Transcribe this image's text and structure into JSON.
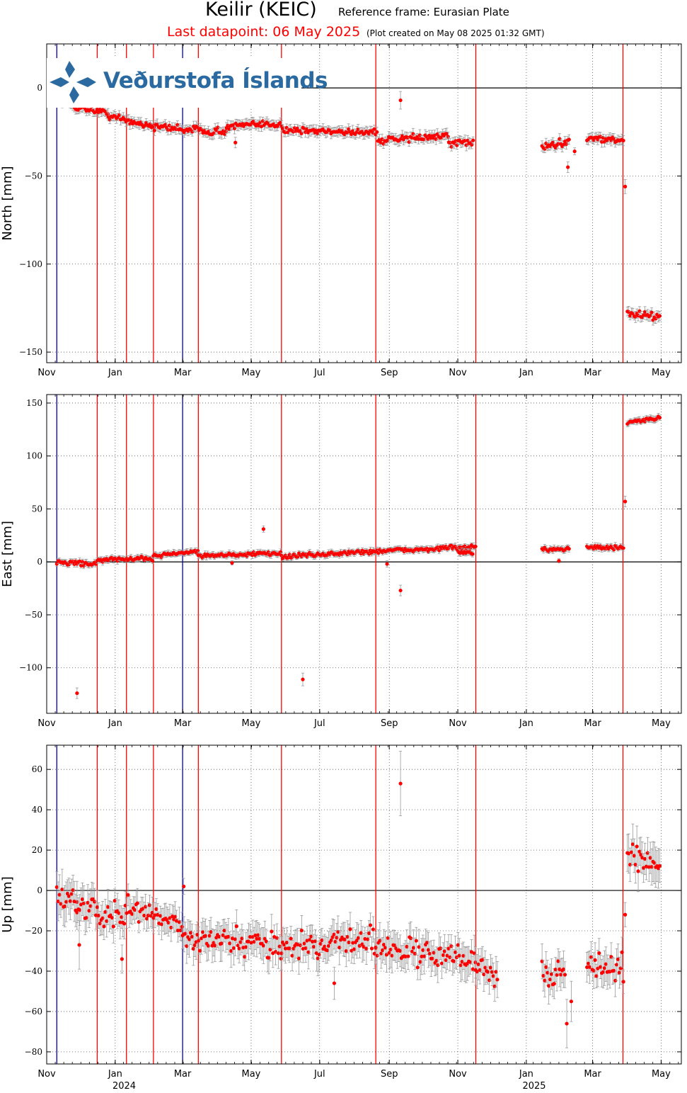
{
  "header": {
    "title": "Keilir (KEIC)",
    "reference": "Reference frame: Eurasian Plate",
    "last_datapoint": "Last datapoint: 06 May 2025",
    "created": "(Plot created on May 08 2025 01:32 GMT)"
  },
  "logo": {
    "text": "Veðurstofa Íslands"
  },
  "colors": {
    "data": "#ff0000",
    "errorbar": "#999999",
    "event_red": "#ff0000",
    "event_blue": "#0000aa",
    "grid": "#555555"
  },
  "chart_data": [
    {
      "type": "scatter",
      "ylabel": "North [mm]",
      "ylim": [
        -156,
        25
      ],
      "yticks": [
        0,
        -50,
        -100,
        -150
      ],
      "xlim": [
        0,
        565
      ],
      "xticks": [
        {
          "x": 0,
          "label": "Nov"
        },
        {
          "x": 61,
          "label": "Jan"
        },
        {
          "x": 121,
          "label": "Mar"
        },
        {
          "x": 182,
          "label": "May"
        },
        {
          "x": 243,
          "label": "Jul"
        },
        {
          "x": 305,
          "label": "Sep"
        },
        {
          "x": 366,
          "label": "Nov"
        },
        {
          "x": 427,
          "label": "Jan"
        },
        {
          "x": 486,
          "label": "Mar"
        },
        {
          "x": 547,
          "label": "May"
        }
      ],
      "grid": true,
      "zero_line": true,
      "segments": [
        {
          "x0": 9,
          "x1": 27,
          "y0": -6,
          "y1": -11,
          "noise": 1.5,
          "err": 2.5
        },
        {
          "x0": 27,
          "x1": 55,
          "y0": -11,
          "y1": -14,
          "noise": 1.5,
          "err": 2.5
        },
        {
          "x0": 55,
          "x1": 96,
          "y0": -16,
          "y1": -22,
          "noise": 1.5,
          "err": 2.5
        },
        {
          "x0": 96,
          "x1": 160,
          "y0": -22,
          "y1": -25,
          "noise": 1.5,
          "err": 2.5
        },
        {
          "x0": 160,
          "x1": 210,
          "y0": -22,
          "y1": -20,
          "noise": 1.5,
          "err": 2.5
        },
        {
          "x0": 210,
          "x1": 295,
          "y0": -24,
          "y1": -25,
          "noise": 1.5,
          "err": 2.5
        },
        {
          "x0": 295,
          "x1": 358,
          "y0": -30,
          "y1": -27,
          "noise": 1.5,
          "err": 2.5
        },
        {
          "x0": 358,
          "x1": 380,
          "y0": -32,
          "y1": -30,
          "noise": 1.5,
          "err": 2.5
        },
        {
          "x0": 441,
          "x1": 465,
          "y0": -34,
          "y1": -30,
          "noise": 1.5,
          "err": 2.5
        },
        {
          "x0": 481,
          "x1": 514,
          "y0": -28,
          "y1": -30,
          "noise": 1.5,
          "err": 2.5
        },
        {
          "x0": 517,
          "x1": 546,
          "y0": -128,
          "y1": -130,
          "noise": 1.5,
          "err": 2.5
        }
      ],
      "points": [
        {
          "x": 315,
          "y": -7,
          "err": 5
        },
        {
          "x": 515,
          "y": -56,
          "err": 4
        },
        {
          "x": 464,
          "y": -45,
          "err": 3
        },
        {
          "x": 470,
          "y": -36,
          "err": 2
        },
        {
          "x": 168,
          "y": -31,
          "err": 3
        }
      ],
      "events": [
        {
          "x": 9,
          "color": "blue"
        },
        {
          "x": 45,
          "color": "red"
        },
        {
          "x": 71,
          "color": "red"
        },
        {
          "x": 95,
          "color": "red"
        },
        {
          "x": 121,
          "color": "blue"
        },
        {
          "x": 135,
          "color": "red"
        },
        {
          "x": 209,
          "color": "red"
        },
        {
          "x": 293,
          "color": "red"
        },
        {
          "x": 382,
          "color": "red"
        },
        {
          "x": 513,
          "color": "red"
        }
      ]
    },
    {
      "type": "scatter",
      "ylabel": "East [mm]",
      "ylim": [
        -143,
        158
      ],
      "yticks": [
        150,
        100,
        50,
        0,
        -50,
        -100
      ],
      "xlim": [
        0,
        565
      ],
      "xticks": [
        {
          "x": 0,
          "label": "Nov"
        },
        {
          "x": 61,
          "label": "Jan"
        },
        {
          "x": 121,
          "label": "Mar"
        },
        {
          "x": 182,
          "label": "May"
        },
        {
          "x": 243,
          "label": "Jul"
        },
        {
          "x": 305,
          "label": "Sep"
        },
        {
          "x": 366,
          "label": "Nov"
        },
        {
          "x": 427,
          "label": "Jan"
        },
        {
          "x": 486,
          "label": "Mar"
        },
        {
          "x": 547,
          "label": "May"
        }
      ],
      "grid": true,
      "zero_line": true,
      "segments": [
        {
          "x0": 9,
          "x1": 45,
          "y0": 0,
          "y1": -2,
          "noise": 1.5,
          "err": 2.5
        },
        {
          "x0": 45,
          "x1": 95,
          "y0": 2,
          "y1": 3,
          "noise": 1.5,
          "err": 2.5
        },
        {
          "x0": 95,
          "x1": 135,
          "y0": 6,
          "y1": 10,
          "noise": 1.5,
          "err": 2.5
        },
        {
          "x0": 135,
          "x1": 209,
          "y0": 6,
          "y1": 8,
          "noise": 1.5,
          "err": 2.5
        },
        {
          "x0": 209,
          "x1": 293,
          "y0": 5,
          "y1": 10,
          "noise": 1.5,
          "err": 2.5
        },
        {
          "x0": 293,
          "x1": 382,
          "y0": 10,
          "y1": 14,
          "noise": 1.5,
          "err": 2.5
        },
        {
          "x0": 366,
          "x1": 380,
          "y0": 10,
          "y1": 7,
          "noise": 1.5,
          "err": 2.5
        },
        {
          "x0": 441,
          "x1": 465,
          "y0": 12,
          "y1": 13,
          "noise": 1.5,
          "err": 2.5
        },
        {
          "x0": 481,
          "x1": 514,
          "y0": 14,
          "y1": 13,
          "noise": 1.5,
          "err": 2.5
        },
        {
          "x0": 517,
          "x1": 546,
          "y0": 131,
          "y1": 136,
          "noise": 1.5,
          "err": 2.5
        }
      ],
      "points": [
        {
          "x": 27,
          "y": -124,
          "err": 5
        },
        {
          "x": 193,
          "y": 31,
          "err": 3
        },
        {
          "x": 228,
          "y": -111,
          "err": 6
        },
        {
          "x": 315,
          "y": -27,
          "err": 5
        },
        {
          "x": 303,
          "y": -2,
          "err": 3
        },
        {
          "x": 515,
          "y": 57,
          "err": 5
        },
        {
          "x": 456,
          "y": 1,
          "err": 2
        },
        {
          "x": 165,
          "y": -1,
          "err": 2
        }
      ],
      "events": [
        {
          "x": 9,
          "color": "blue"
        },
        {
          "x": 45,
          "color": "red"
        },
        {
          "x": 71,
          "color": "red"
        },
        {
          "x": 95,
          "color": "red"
        },
        {
          "x": 121,
          "color": "blue"
        },
        {
          "x": 135,
          "color": "red"
        },
        {
          "x": 209,
          "color": "red"
        },
        {
          "x": 293,
          "color": "red"
        },
        {
          "x": 382,
          "color": "red"
        },
        {
          "x": 513,
          "color": "red"
        }
      ]
    },
    {
      "type": "scatter",
      "ylabel": "Up [mm]",
      "ylim": [
        -86,
        72
      ],
      "yticks": [
        60,
        40,
        20,
        0,
        -20,
        -40,
        -60,
        -80
      ],
      "xlim": [
        0,
        565
      ],
      "xticks": [
        {
          "x": 0,
          "label": "Nov"
        },
        {
          "x": 61,
          "label": "Jan"
        },
        {
          "x": 121,
          "label": "Mar"
        },
        {
          "x": 182,
          "label": "May"
        },
        {
          "x": 243,
          "label": "Jul"
        },
        {
          "x": 305,
          "label": "Sep"
        },
        {
          "x": 366,
          "label": "Nov"
        },
        {
          "x": 427,
          "label": "Jan"
        },
        {
          "x": 486,
          "label": "Mar"
        },
        {
          "x": 547,
          "label": "May"
        }
      ],
      "year_labels": [
        {
          "x": 69,
          "label": "2024"
        },
        {
          "x": 434,
          "label": "2025"
        }
      ],
      "grid": true,
      "zero_line": true,
      "segments": [
        {
          "x0": 9,
          "x1": 27,
          "y0": 0,
          "y1": -5,
          "noise": 5,
          "err": 8
        },
        {
          "x0": 27,
          "x1": 70,
          "y0": -7,
          "y1": -16,
          "noise": 5,
          "err": 7
        },
        {
          "x0": 70,
          "x1": 121,
          "y0": -8,
          "y1": -17,
          "noise": 4,
          "err": 6
        },
        {
          "x0": 121,
          "x1": 209,
          "y0": -25,
          "y1": -27,
          "noise": 5,
          "err": 7
        },
        {
          "x0": 209,
          "x1": 293,
          "y0": -28,
          "y1": -24,
          "noise": 5,
          "err": 7
        },
        {
          "x0": 293,
          "x1": 382,
          "y0": -28,
          "y1": -35,
          "noise": 5,
          "err": 7
        },
        {
          "x0": 382,
          "x1": 402,
          "y0": -38,
          "y1": -42,
          "noise": 4,
          "err": 7
        },
        {
          "x0": 441,
          "x1": 462,
          "y0": -42,
          "y1": -40,
          "noise": 5,
          "err": 7
        },
        {
          "x0": 481,
          "x1": 514,
          "y0": -37,
          "y1": -39,
          "noise": 5,
          "err": 7
        },
        {
          "x0": 517,
          "x1": 546,
          "y0": 17,
          "y1": 14,
          "noise": 5,
          "err": 8
        }
      ],
      "points": [
        {
          "x": 315,
          "y": 53,
          "err": 16
        },
        {
          "x": 515,
          "y": -12,
          "err": 6
        },
        {
          "x": 463,
          "y": -66,
          "err": 12
        },
        {
          "x": 467,
          "y": -55,
          "err": 10
        },
        {
          "x": 122,
          "y": 2,
          "err": 4
        },
        {
          "x": 29,
          "y": -27,
          "err": 12
        },
        {
          "x": 67,
          "y": -34,
          "err": 7
        },
        {
          "x": 256,
          "y": -46,
          "err": 8
        }
      ],
      "events": [
        {
          "x": 9,
          "color": "blue"
        },
        {
          "x": 45,
          "color": "red"
        },
        {
          "x": 71,
          "color": "red"
        },
        {
          "x": 95,
          "color": "red"
        },
        {
          "x": 121,
          "color": "blue"
        },
        {
          "x": 135,
          "color": "red"
        },
        {
          "x": 209,
          "color": "red"
        },
        {
          "x": 293,
          "color": "red"
        },
        {
          "x": 382,
          "color": "red"
        },
        {
          "x": 513,
          "color": "red"
        }
      ]
    }
  ]
}
